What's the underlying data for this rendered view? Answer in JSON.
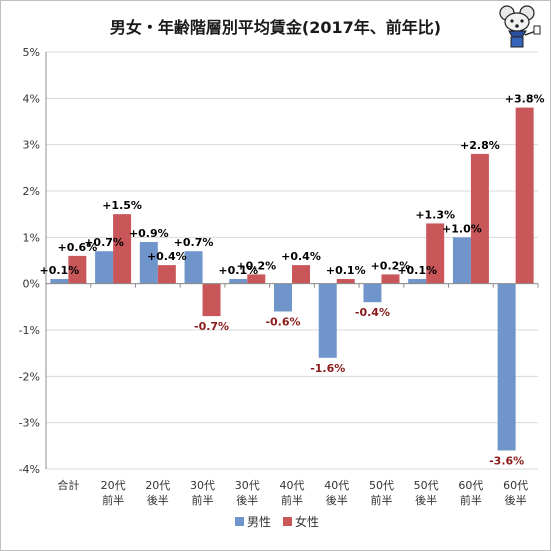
{
  "chart_data": {
    "type": "bar",
    "title": "男女・年齢階層別平均賃金(2017年、前年比)",
    "categories": [
      [
        "合計"
      ],
      [
        "20代",
        "前半"
      ],
      [
        "20代",
        "後半"
      ],
      [
        "30代",
        "前半"
      ],
      [
        "30代",
        "後半"
      ],
      [
        "40代",
        "前半"
      ],
      [
        "40代",
        "後半"
      ],
      [
        "50代",
        "前半"
      ],
      [
        "50代",
        "後半"
      ],
      [
        "60代",
        "前半"
      ],
      [
        "60代",
        "後半"
      ]
    ],
    "series": [
      {
        "name": "男性",
        "color": "#6f95cb",
        "values": [
          0.1,
          0.7,
          0.9,
          0.7,
          0.1,
          -0.6,
          -1.6,
          -0.4,
          0.1,
          1.0,
          -3.6
        ],
        "labels": [
          "+0.1%",
          "+0.7%",
          "+0.9%",
          "+0.7%",
          "+0.1%",
          "-0.6%",
          "-1.6%",
          "-0.4%",
          "+0.1%",
          "+1.0%",
          "-3.6%"
        ]
      },
      {
        "name": "女性",
        "color": "#c9575a",
        "values": [
          0.6,
          1.5,
          0.4,
          -0.7,
          0.2,
          0.4,
          0.1,
          0.2,
          1.3,
          2.8,
          3.8
        ],
        "labels": [
          "+0.6%",
          "+1.5%",
          "+0.4%",
          "-0.7%",
          "+0.2%",
          "+0.4%",
          "+0.1%",
          "+0.2%",
          "+1.3%",
          "+2.8%",
          "+3.8%"
        ]
      }
    ],
    "ylim": [
      -4,
      5
    ],
    "yticks": [
      -4,
      -3,
      -2,
      -1,
      0,
      1,
      2,
      3,
      4,
      5
    ],
    "ytick_labels": [
      "-4%",
      "-3%",
      "-2%",
      "-1%",
      "0%",
      "1%",
      "2%",
      "3%",
      "4%",
      "5%"
    ],
    "grid": true,
    "legend": "bottom",
    "negative_label_color": "#8b1a1a",
    "positive_label_color": "#000000"
  }
}
